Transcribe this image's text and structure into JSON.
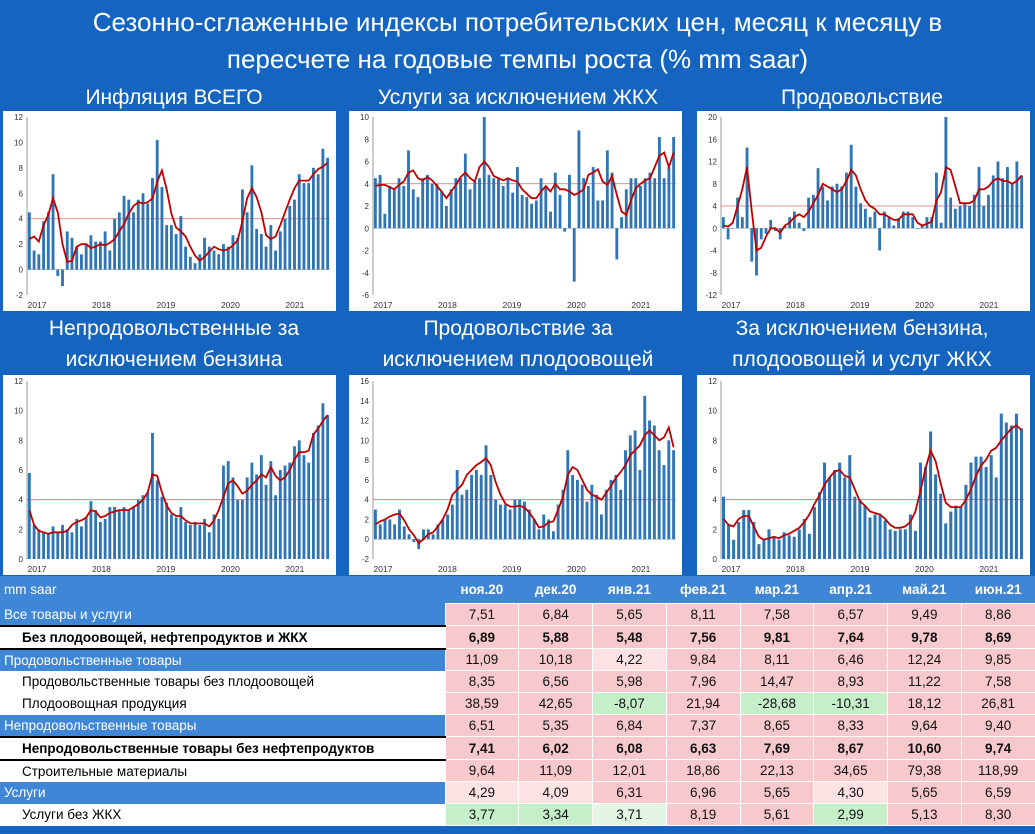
{
  "title_line1": "Сезонно-сглаженные индексы потребительских цен, месяц к месяцу в",
  "title_line2": "пересчете на годовые темпы роста (% mm saar)",
  "colors": {
    "bar": "#2e75b6",
    "line": "#c00000",
    "ref": "#e06666"
  },
  "charts": [
    {
      "title1": "Инфляция ВСЕГО",
      "title2": "",
      "ylim": [
        -2,
        12
      ],
      "yticks": [
        -2,
        0,
        2,
        4,
        6,
        8,
        10,
        12
      ],
      "ref": 4,
      "values": [
        4.5,
        1.5,
        1.2,
        3.8,
        4.5,
        7.5,
        -0.5,
        -1.3,
        3,
        2.5,
        1.8,
        1.2,
        2,
        2.7,
        2.2,
        2.2,
        3,
        1.5,
        4,
        4.5,
        5.8,
        5.5,
        4.5,
        5.5,
        6,
        5.2,
        7.2,
        10.2,
        6.5,
        3.5,
        3.5,
        2.8,
        4.2,
        1.8,
        1,
        0.5,
        1.2,
        2.5,
        1.8,
        1.5,
        1.2,
        2,
        1.8,
        2.7,
        2.5,
        6.3,
        4.5,
        8.2,
        3.2,
        2.8,
        1.8,
        3.5,
        1.5,
        3,
        4,
        5,
        5.5,
        7.5,
        6.8,
        6.8,
        8,
        7.5,
        9.5,
        8.8
      ],
      "trend": [
        2.4,
        2.6,
        2.2,
        3.5,
        4.3,
        5.6,
        4.5,
        2,
        0.6,
        0.7,
        1.8,
        2,
        2,
        1.7,
        1.8,
        2,
        1.9,
        2.1,
        2.4,
        3,
        3.6,
        4.4,
        5,
        5.3,
        5.2,
        5.3,
        5.6,
        6.9,
        7.8,
        6.3,
        4.4,
        3.3,
        3,
        2.6,
        1.8,
        1.1,
        0.7,
        1,
        1.4,
        1.8,
        1.6,
        1.5,
        1.6,
        1.9,
        2.3,
        3.8,
        5.6,
        6.4,
        5.7,
        4.5,
        2.7,
        2.4,
        2.6,
        3.5,
        4.5,
        5.5,
        6.4,
        7,
        7,
        7,
        7.5,
        7.9,
        8.1,
        8.4
      ],
      "xlabels": [
        "2017",
        "2018",
        "2019",
        "2020",
        "2021"
      ]
    },
    {
      "title1": "Услуги за исключением ЖКХ",
      "title2": "",
      "ylim": [
        -6,
        10
      ],
      "yticks": [
        -6,
        -4,
        -2,
        0,
        2,
        4,
        6,
        8,
        10
      ],
      "ref": 4,
      "values": [
        4.5,
        4.8,
        1.3,
        3.8,
        3.5,
        4.5,
        3.8,
        7,
        3.5,
        2.8,
        4.5,
        4.8,
        4,
        4,
        3.3,
        2,
        3.5,
        4.5,
        4.5,
        6.7,
        3.5,
        4.2,
        4.5,
        10,
        4.8,
        4.5,
        4.5,
        3.8,
        4.5,
        3.2,
        5.5,
        3,
        2.8,
        2.2,
        2.5,
        4.5,
        3.8,
        1.5,
        5,
        3,
        -0.3,
        4.8,
        -4.8,
        8.8,
        4.5,
        3.8,
        5.5,
        2.5,
        2.5,
        7,
        5,
        -2.8,
        1,
        3.5,
        4.5,
        4.5,
        3.8,
        4.5,
        5,
        4.5,
        8.2,
        4.5,
        5.5,
        8.2
      ],
      "trend": [
        3.8,
        3.9,
        3.9,
        3.7,
        3.5,
        3.9,
        4.2,
        5,
        5.2,
        4.5,
        4.3,
        4.6,
        4.3,
        3.8,
        3.3,
        2.7,
        3.3,
        3.9,
        4.6,
        5,
        4.5,
        4.2,
        5.5,
        6,
        5.5,
        4.7,
        4.5,
        4.3,
        4.5,
        4.3,
        4.2,
        3.5,
        3.1,
        2.7,
        2.7,
        3.3,
        3.8,
        3.3,
        4,
        3.5,
        3.5,
        3.3,
        3,
        3.2,
        3.5,
        4.8,
        5,
        5.3,
        4.2,
        3.9,
        4.7,
        3,
        1.5,
        1.2,
        2.5,
        3.6,
        4,
        4.3,
        4.5,
        5.5,
        6.5,
        6.8,
        5.5,
        6.8
      ],
      "xlabels": [
        "2017",
        "2018",
        "2019",
        "2020",
        "2021"
      ]
    },
    {
      "title1": "Продовольствие",
      "title2": "",
      "ylim": [
        -12,
        20
      ],
      "yticks": [
        -12,
        -8,
        -4,
        0,
        4,
        8,
        12,
        16,
        20
      ],
      "ref": 4,
      "values": [
        2,
        -2,
        0,
        5.5,
        2,
        14.5,
        -6,
        -8.5,
        -2,
        -1,
        1.5,
        -0.5,
        -2,
        0.5,
        2,
        3,
        1,
        -0.5,
        5.5,
        6,
        10.8,
        7.5,
        5,
        7.5,
        8,
        7.5,
        10,
        15,
        7.5,
        4.5,
        3.5,
        2,
        3,
        -4,
        3,
        2,
        0.5,
        1.8,
        3,
        3,
        2,
        0,
        0.5,
        2,
        2,
        10,
        1,
        20,
        5.5,
        3.5,
        4,
        4.5,
        4,
        6,
        11,
        4,
        6,
        9.5,
        12,
        9,
        11,
        8,
        12,
        9.5
      ],
      "trend": [
        0.5,
        0.3,
        1,
        4,
        7,
        11,
        3,
        -4,
        -3.5,
        -1.5,
        0,
        0,
        -0.8,
        0.5,
        1,
        2,
        2.5,
        2,
        3,
        4.5,
        6,
        8,
        7.5,
        7,
        6.5,
        7,
        8.5,
        10.5,
        9.5,
        7,
        5,
        4,
        3.5,
        2.5,
        2.5,
        2,
        1.5,
        1.5,
        2.5,
        2.5,
        2.5,
        1,
        0.5,
        0.8,
        1.2,
        5,
        6.5,
        11,
        10.5,
        7.5,
        4.5,
        4.5,
        4.5,
        5,
        7,
        7,
        7.5,
        8.5,
        9,
        8.5,
        8.5,
        8,
        8.5,
        9.5
      ],
      "xlabels": [
        "2017",
        "2018",
        "2019",
        "2020",
        "2021"
      ]
    },
    {
      "title1": "Непродовольственные за",
      "title2": "исключением бензина",
      "ylim": [
        0,
        12
      ],
      "yticks": [
        0,
        2,
        4,
        6,
        8,
        10,
        12
      ],
      "ref": 4,
      "values": [
        5.8,
        2.3,
        2,
        1.8,
        1.7,
        2.2,
        1.8,
        2.3,
        2,
        1.8,
        2.7,
        2.2,
        2.8,
        3.9,
        3.3,
        2.5,
        2.7,
        3.5,
        3.5,
        3.3,
        3.5,
        3.3,
        3.5,
        4,
        4.3,
        4.5,
        8.5,
        5.3,
        4.2,
        3.8,
        3,
        2.8,
        3.5,
        2.5,
        2.3,
        2.5,
        2.3,
        2.7,
        1.8,
        3,
        2.7,
        6.3,
        6.6,
        5.5,
        4,
        4,
        5.5,
        6.5,
        5.7,
        7,
        5,
        6.6,
        4.3,
        6,
        6.3,
        6.5,
        7.6,
        8,
        7,
        6.5,
        8.5,
        9,
        10.5,
        9.7
      ],
      "trend": [
        3.3,
        2.3,
        1.9,
        1.8,
        1.7,
        1.8,
        1.8,
        1.8,
        1.9,
        2.3,
        2.5,
        2.6,
        2.8,
        3.3,
        3.2,
        2.8,
        2.9,
        3.1,
        3.2,
        3.3,
        3.3,
        3.3,
        3.5,
        3.7,
        4,
        4.5,
        5.7,
        5.6,
        4.5,
        3.6,
        3.1,
        2.9,
        2.9,
        2.6,
        2.4,
        2.4,
        2.4,
        2.4,
        2.2,
        2.6,
        3.3,
        4.2,
        5.1,
        5.3,
        4.9,
        4.4,
        4.6,
        5,
        5.3,
        5.7,
        5.5,
        6.2,
        5.6,
        5.3,
        5.5,
        6,
        6.7,
        7.2,
        7.2,
        7.3,
        8.4,
        8.8,
        9.3,
        9.7
      ],
      "xlabels": [
        "2017",
        "2018",
        "2019",
        "2020",
        "2021"
      ]
    },
    {
      "title1": "Продовольствие за",
      "title2": "исключением плодоовощей",
      "ylim": [
        -2,
        16
      ],
      "yticks": [
        -2,
        0,
        2,
        4,
        6,
        8,
        10,
        12,
        14,
        16
      ],
      "ref": 4,
      "values": [
        3,
        1.5,
        2,
        2,
        1.5,
        3,
        1.3,
        0.5,
        -0.3,
        -1,
        1,
        1,
        0.5,
        1.5,
        2,
        2.5,
        3.5,
        7,
        4.5,
        5,
        6.5,
        7,
        6.5,
        9.5,
        6.5,
        4,
        3.5,
        3.5,
        3,
        4,
        4,
        3.8,
        3,
        2,
        1,
        2.5,
        2,
        0.8,
        3.5,
        5,
        9,
        6.5,
        6,
        5.5,
        3.8,
        5.5,
        4.5,
        2.5,
        5,
        6,
        6.5,
        5,
        9,
        10.5,
        11,
        7,
        14.5,
        12,
        11.5,
        9,
        7.5,
        10,
        9
      ],
      "trend": [
        1.5,
        1.8,
        2,
        2.3,
        2.5,
        2.6,
        1.9,
        1,
        0.4,
        -0.4,
        0,
        0.5,
        0.7,
        1.3,
        2,
        3,
        4.5,
        5,
        5.5,
        6.5,
        7,
        7.5,
        7.8,
        8.2,
        7.5,
        5.8,
        4.5,
        3.6,
        3.3,
        3.3,
        3.4,
        3.2,
        2.7,
        2,
        1.2,
        1.3,
        1.7,
        1.8,
        3,
        4.3,
        6.5,
        7.3,
        7,
        6,
        5,
        4.5,
        4.3,
        4,
        4.7,
        5.4,
        6.2,
        6.8,
        7.5,
        8.5,
        9,
        9.5,
        10.5,
        11,
        10.5,
        10,
        10.3,
        11.3,
        9.3
      ],
      "xlabels": [
        "2017",
        "2018",
        "2019",
        "2020",
        "2021"
      ]
    },
    {
      "title1": "За исключением бензина,",
      "title2": "плодоовощей и услуг ЖКХ",
      "ylim": [
        0,
        12
      ],
      "yticks": [
        0,
        2,
        4,
        6,
        8,
        10,
        12
      ],
      "ref": 4,
      "values": [
        4.2,
        2.3,
        1.3,
        2.5,
        3.3,
        3.3,
        2.5,
        1,
        1.3,
        2,
        1.5,
        1.3,
        1.8,
        1.6,
        1.5,
        2,
        2.7,
        1.7,
        3.5,
        4.5,
        6.5,
        5.5,
        6,
        6.5,
        5.5,
        7,
        4.2,
        4,
        3.6,
        2.8,
        3,
        3,
        2.6,
        2,
        1.9,
        2,
        2,
        3,
        1.9,
        6.5,
        6.2,
        8.6,
        5.7,
        4.4,
        2.4,
        3.2,
        3.6,
        3.5,
        5,
        6.5,
        6.9,
        6.9,
        6.2,
        7,
        5.5,
        9.8,
        9.2,
        9,
        9.8,
        8.8
      ],
      "trend": [
        2.7,
        2.3,
        2.2,
        2.7,
        2.9,
        2.9,
        2.2,
        1.5,
        1.3,
        1.4,
        1.5,
        1.4,
        1.6,
        1.7,
        1.9,
        2.1,
        2.5,
        3,
        3.7,
        4.3,
        5,
        5.5,
        5.9,
        6,
        5.6,
        5.5,
        4.7,
        3.9,
        3.6,
        3.2,
        3.1,
        3,
        2.7,
        2.3,
        2.1,
        2.1,
        2.2,
        2.5,
        3.2,
        4.6,
        6.1,
        7.3,
        6.6,
        5.1,
        3.8,
        3.5,
        3.5,
        3.5,
        4,
        4.7,
        5.6,
        6.3,
        6.7,
        7.3,
        7.5,
        8,
        8.4,
        8.8,
        9,
        8.7
      ],
      "xlabels": [
        "2017",
        "2018",
        "2019",
        "2020",
        "2021"
      ]
    }
  ],
  "table": {
    "header": [
      "mm saar",
      "ноя.20",
      "дек.20",
      "янв.21",
      "фев.21",
      "мар.21",
      "апр.21",
      "май.21",
      "июн.21"
    ],
    "rows": [
      {
        "label": "Все товары и услуги",
        "type": "cat",
        "values": [
          "7,51",
          "6,84",
          "5,65",
          "8,11",
          "7,58",
          "6,57",
          "9,49",
          "8,86"
        ],
        "colors": [
          "red",
          "red",
          "red",
          "red",
          "red",
          "red",
          "red",
          "red"
        ]
      },
      {
        "label": "Без плодоовощей, нефтепродуктов и ЖКХ",
        "type": "sub bold",
        "values": [
          "6,89",
          "5,88",
          "5,48",
          "7,56",
          "9,81",
          "7,64",
          "9,78",
          "8,69"
        ],
        "colors": [
          "red",
          "red",
          "red",
          "red",
          "red",
          "red",
          "red",
          "red"
        ]
      },
      {
        "label": "Продовольственные товары",
        "type": "cat",
        "values": [
          "11,09",
          "10,18",
          "4,22",
          "9,84",
          "8,11",
          "6,46",
          "12,24",
          "9,85"
        ],
        "colors": [
          "red",
          "red",
          "lred",
          "red",
          "red",
          "red",
          "red",
          "red"
        ]
      },
      {
        "label": "Продовольственные товары без плодоовощей",
        "type": "sub",
        "values": [
          "8,35",
          "6,56",
          "5,98",
          "7,96",
          "14,47",
          "8,93",
          "11,22",
          "7,58"
        ],
        "colors": [
          "red",
          "red",
          "red",
          "red",
          "red",
          "red",
          "red",
          "red"
        ]
      },
      {
        "label": "Плодоовощная продукция",
        "type": "sub",
        "values": [
          "38,59",
          "42,65",
          "-8,07",
          "21,94",
          "-28,68",
          "-10,31",
          "18,12",
          "26,81"
        ],
        "colors": [
          "red",
          "red",
          "green",
          "red",
          "green",
          "green",
          "red",
          "red"
        ]
      },
      {
        "label": "Непродовольственные товары",
        "type": "cat",
        "values": [
          "6,51",
          "5,35",
          "6,84",
          "7,37",
          "8,65",
          "8,33",
          "9,64",
          "9,40"
        ],
        "colors": [
          "red",
          "red",
          "red",
          "red",
          "red",
          "red",
          "red",
          "red"
        ]
      },
      {
        "label": "Непродовольственные товары без нефтепродуктов",
        "type": "sub bold",
        "values": [
          "7,41",
          "6,02",
          "6,08",
          "6,63",
          "7,69",
          "8,67",
          "10,60",
          "9,74"
        ],
        "colors": [
          "red",
          "red",
          "red",
          "red",
          "red",
          "red",
          "red",
          "red"
        ]
      },
      {
        "label": "Строительные материалы",
        "type": "sub",
        "values": [
          "9,64",
          "11,09",
          "12,01",
          "18,86",
          "22,13",
          "34,65",
          "79,38",
          "118,99"
        ],
        "colors": [
          "red",
          "red",
          "red",
          "red",
          "red",
          "red",
          "red",
          "red"
        ]
      },
      {
        "label": "Услуги",
        "type": "cat",
        "values": [
          "4,29",
          "4,09",
          "6,31",
          "6,96",
          "5,65",
          "4,30",
          "5,65",
          "6,59"
        ],
        "colors": [
          "lred",
          "lred",
          "red",
          "red",
          "red",
          "lred",
          "red",
          "red"
        ]
      },
      {
        "label": "Услуги без ЖКХ",
        "type": "sub",
        "values": [
          "3,77",
          "3,34",
          "3,71",
          "8,19",
          "5,61",
          "2,99",
          "5,13",
          "8,30"
        ],
        "colors": [
          "green",
          "green",
          "lgreen",
          "red",
          "red",
          "green",
          "red",
          "red"
        ]
      }
    ]
  }
}
